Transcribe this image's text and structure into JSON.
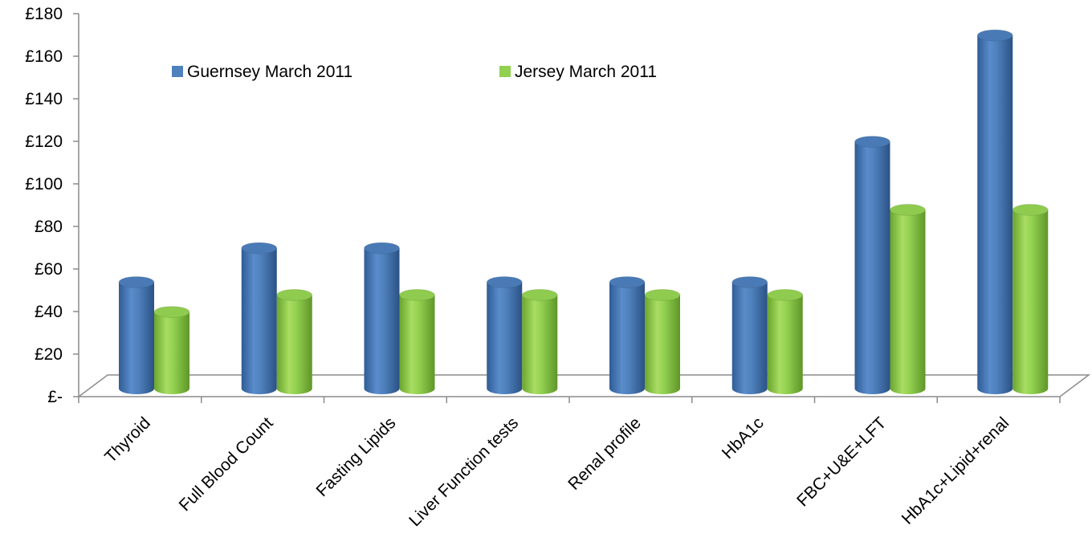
{
  "chart_data": {
    "type": "bar",
    "title": "",
    "xlabel": "",
    "ylabel": "",
    "ylim": [
      0,
      180
    ],
    "y_ticks": [
      {
        "value": 180,
        "label": "£180"
      },
      {
        "value": 160,
        "label": "£160"
      },
      {
        "value": 140,
        "label": "£140"
      },
      {
        "value": 120,
        "label": "£120"
      },
      {
        "value": 100,
        "label": "£100"
      },
      {
        "value": 80,
        "label": "£80"
      },
      {
        "value": 60,
        "label": "£60"
      },
      {
        "value": 40,
        "label": "£40"
      },
      {
        "value": 20,
        "label": "£20"
      },
      {
        "value": 0,
        "label": "£-"
      }
    ],
    "categories": [
      "Thyroid",
      "Full Blood Count",
      "Fasting Lipids",
      "Liver Function tests",
      "Renal profile",
      "HbA1c",
      "FBC+U&E+LFT",
      "HbA1c+Lipid+renal"
    ],
    "series": [
      {
        "name": "Guernsey March 2011",
        "color": "#4F81BD",
        "values": [
          50,
          66,
          66,
          50,
          50,
          50,
          116,
          166
        ]
      },
      {
        "name": "Jersey March 2011",
        "color": "#92D050",
        "values": [
          36,
          44,
          44,
          44,
          44,
          44,
          84,
          84
        ]
      }
    ],
    "grid": false,
    "legend_position": "top-left",
    "style": "3d-cylinder"
  }
}
